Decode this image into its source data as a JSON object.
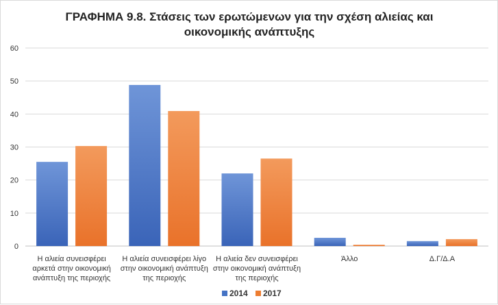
{
  "chart_data": {
    "type": "bar",
    "title": [
      "ΓΡΑΦΗΜΑ 9.8. Στάσεις των ερωτώμενων για την σχέση αλιείας και",
      "οικονομικής ανάπτυξης"
    ],
    "categories": [
      [
        "Η αλιεία συνεισφέρει",
        "αρκετά στην οικονομική",
        "ανάπτυξη της περιοχής"
      ],
      [
        "Η αλιεία συνεισφέρει λίγο",
        "στην οικονομική ανάπτυξη",
        "της περιοχής"
      ],
      [
        "Η αλιεία δεν συνεισφέρει",
        "στην οικονομική ανάπτυξη",
        "της περιοχής"
      ],
      [
        "Άλλο"
      ],
      [
        "Δ.Γ/Δ.Α"
      ]
    ],
    "series": [
      {
        "name": "2014",
        "color": "#4472C4",
        "values": [
          25.5,
          48.8,
          22.0,
          2.5,
          1.5
        ]
      },
      {
        "name": "2017",
        "color": "#ED7D31",
        "values": [
          30.3,
          40.9,
          26.5,
          0.4,
          2.1
        ]
      }
    ],
    "ylim": [
      0,
      60
    ],
    "yticks": [
      0,
      10,
      20,
      30,
      40,
      50,
      60
    ],
    "xlabel": "",
    "ylabel": "",
    "grid": true,
    "legend": "bottom-center"
  }
}
